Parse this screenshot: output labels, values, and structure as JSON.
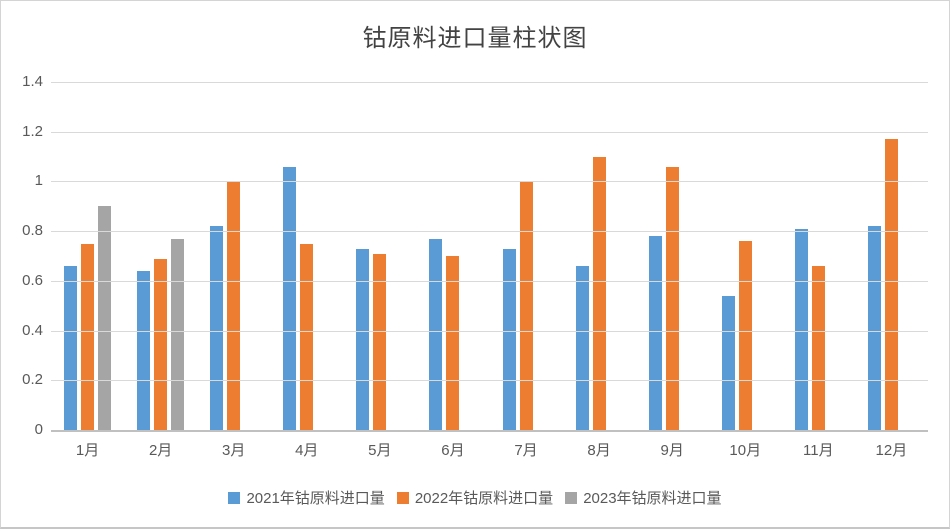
{
  "title": "钴原料进口量柱状图",
  "colors": {
    "series_2021": "#5B9BD5",
    "series_2022": "#ED7D31",
    "series_2023": "#A5A5A5",
    "gridline": "#D9D9D9",
    "axis_line": "#C0C0C0",
    "title_text": "#434343",
    "tick_text": "#595959"
  },
  "chart_data": {
    "type": "bar",
    "title": "钴原料进口量柱状图",
    "categories": [
      "1月",
      "2月",
      "3月",
      "4月",
      "5月",
      "6月",
      "7月",
      "8月",
      "9月",
      "10月",
      "11月",
      "12月"
    ],
    "series": [
      {
        "name": "2021年钴原料进口量",
        "color": "#5B9BD5",
        "values": [
          0.66,
          0.64,
          0.82,
          1.06,
          0.73,
          0.77,
          0.73,
          0.66,
          0.78,
          0.54,
          0.81,
          0.82
        ]
      },
      {
        "name": "2022年钴原料进口量",
        "color": "#ED7D31",
        "values": [
          0.75,
          0.69,
          1.0,
          0.75,
          0.71,
          0.7,
          1.0,
          1.1,
          1.06,
          0.76,
          0.66,
          1.17
        ]
      },
      {
        "name": "2023年钴原料进口量",
        "color": "#A5A5A5",
        "values": [
          0.9,
          0.77,
          null,
          null,
          null,
          null,
          null,
          null,
          null,
          null,
          null,
          null
        ]
      }
    ],
    "xlabel": "",
    "ylabel": "",
    "ylim": [
      0,
      1.4
    ],
    "ytick_interval": 0.2,
    "ytick_labels": [
      "0",
      "0.2",
      "0.4",
      "0.6",
      "0.8",
      "1",
      "1.2",
      "1.4"
    ],
    "grid": true,
    "legend_position": "bottom"
  }
}
